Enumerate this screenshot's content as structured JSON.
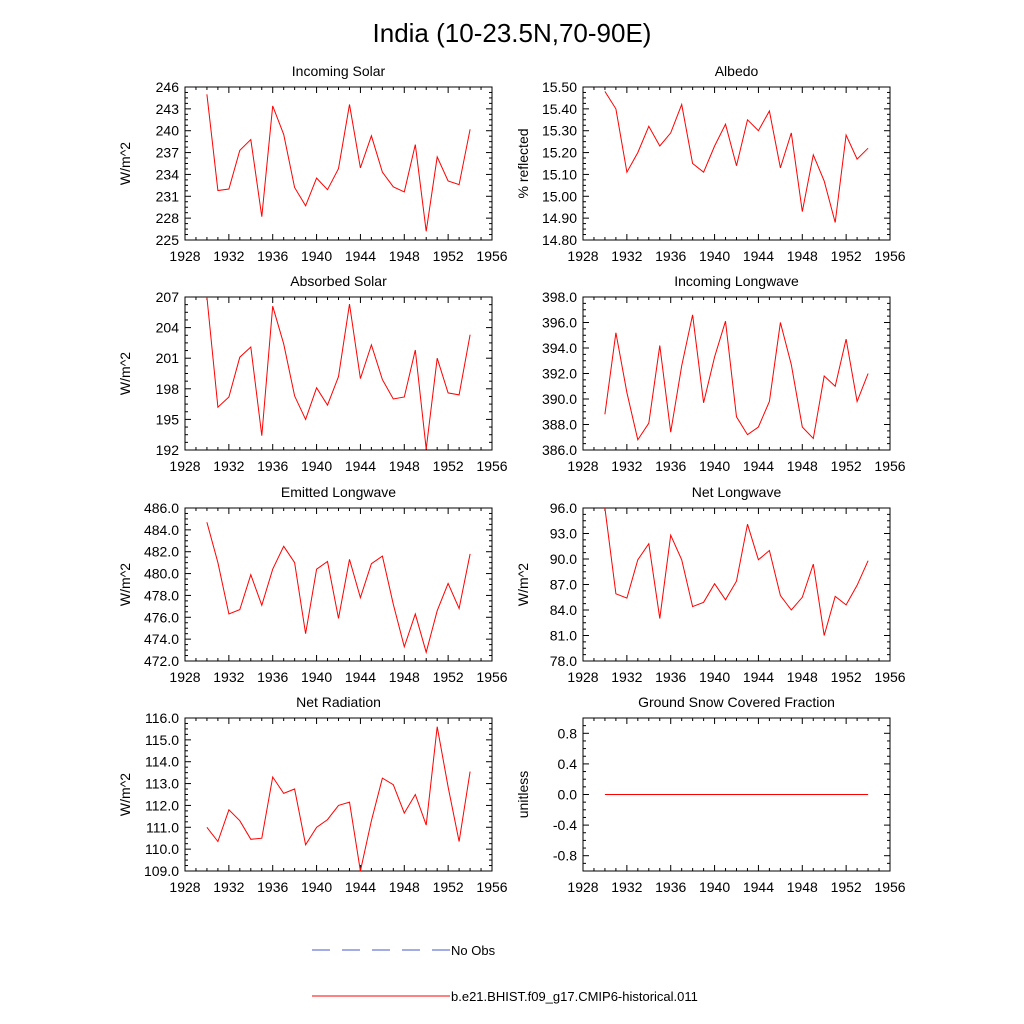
{
  "page_title": "India (10-23.5N,70-90E)",
  "legend": [
    {
      "label": "No Obs",
      "color": "#4a5acd",
      "style": "dashed"
    },
    {
      "label": "b.e21.BHIST.f09_g17.CMIP6-historical.011",
      "color": "#ff0000",
      "style": "solid"
    }
  ],
  "chart_data": [
    {
      "type": "line",
      "title": "Incoming Solar",
      "ylabel": "W/m^2",
      "ylim": [
        225,
        246
      ],
      "yticks": [
        225,
        228,
        231,
        234,
        237,
        240,
        243,
        246
      ],
      "ytick_labels": [
        "225",
        "228",
        "231",
        "234",
        "237",
        "240",
        "243",
        "246"
      ],
      "xlim": [
        1928,
        1956
      ],
      "xticks": [
        1928,
        1932,
        1936,
        1940,
        1944,
        1948,
        1952,
        1956
      ],
      "xtick_labels": [
        "1928",
        "1932",
        "1936",
        "1940",
        "1944",
        "1948",
        "1952",
        "1956"
      ],
      "x": [
        1930,
        1931,
        1932,
        1933,
        1934,
        1935,
        1936,
        1937,
        1938,
        1939,
        1940,
        1941,
        1942,
        1943,
        1944,
        1945,
        1946,
        1947,
        1948,
        1949,
        1950,
        1951,
        1952,
        1953,
        1954
      ],
      "series": [
        {
          "values": [
            245.0,
            231.8,
            232.0,
            237.3,
            238.8,
            228.2,
            243.4,
            239.5,
            232.2,
            229.7,
            233.5,
            231.9,
            234.8,
            243.6,
            234.9,
            239.3,
            234.3,
            232.3,
            231.6,
            238.1,
            226.2,
            236.4,
            233.1,
            232.6,
            240.2
          ]
        }
      ],
      "grid": false
    },
    {
      "type": "line",
      "title": "Albedo",
      "ylabel": "% reflected",
      "ylim": [
        14.8,
        15.5
      ],
      "yticks": [
        14.8,
        14.9,
        15.0,
        15.1,
        15.2,
        15.3,
        15.4,
        15.5
      ],
      "ytick_labels": [
        "14.80",
        "14.90",
        "15.00",
        "15.10",
        "15.20",
        "15.30",
        "15.40",
        "15.50"
      ],
      "xlim": [
        1928,
        1956
      ],
      "xticks": [
        1928,
        1932,
        1936,
        1940,
        1944,
        1948,
        1952,
        1956
      ],
      "xtick_labels": [
        "1928",
        "1932",
        "1936",
        "1940",
        "1944",
        "1948",
        "1952",
        "1956"
      ],
      "x": [
        1930,
        1931,
        1932,
        1933,
        1934,
        1935,
        1936,
        1937,
        1938,
        1939,
        1940,
        1941,
        1942,
        1943,
        1944,
        1945,
        1946,
        1947,
        1948,
        1949,
        1950,
        1951,
        1952,
        1953,
        1954
      ],
      "series": [
        {
          "values": [
            15.48,
            15.4,
            15.11,
            15.2,
            15.32,
            15.23,
            15.29,
            15.42,
            15.15,
            15.11,
            15.23,
            15.33,
            15.14,
            15.35,
            15.3,
            15.39,
            15.13,
            15.29,
            14.93,
            15.19,
            15.07,
            14.88,
            15.28,
            15.17,
            15.22
          ]
        }
      ],
      "grid": false
    },
    {
      "type": "line",
      "title": "Absorbed Solar",
      "ylabel": "W/m^2",
      "ylim": [
        192,
        207
      ],
      "yticks": [
        192,
        195,
        198,
        201,
        204,
        207
      ],
      "ytick_labels": [
        "192",
        "195",
        "198",
        "201",
        "204",
        "207"
      ],
      "xlim": [
        1928,
        1956
      ],
      "xticks": [
        1928,
        1932,
        1936,
        1940,
        1944,
        1948,
        1952,
        1956
      ],
      "xtick_labels": [
        "1928",
        "1932",
        "1936",
        "1940",
        "1944",
        "1948",
        "1952",
        "1956"
      ],
      "x": [
        1930,
        1931,
        1932,
        1933,
        1934,
        1935,
        1936,
        1937,
        1938,
        1939,
        1940,
        1941,
        1942,
        1943,
        1944,
        1945,
        1946,
        1947,
        1948,
        1949,
        1950,
        1951,
        1952,
        1953,
        1954
      ],
      "series": [
        {
          "values": [
            207.0,
            196.2,
            197.2,
            201.1,
            202.1,
            193.4,
            206.1,
            202.4,
            197.3,
            195.0,
            198.1,
            196.4,
            199.2,
            206.3,
            199.0,
            202.3,
            198.9,
            197.0,
            197.2,
            201.8,
            192.1,
            201.0,
            197.6,
            197.4,
            203.3
          ]
        }
      ],
      "grid": false
    },
    {
      "type": "line",
      "title": "Incoming Longwave",
      "ylabel": "",
      "ylim": [
        386,
        398
      ],
      "yticks": [
        386,
        388,
        390,
        392,
        394,
        396,
        398
      ],
      "ytick_labels": [
        "386.0",
        "388.0",
        "390.0",
        "392.0",
        "394.0",
        "396.0",
        "398.0"
      ],
      "xlim": [
        1928,
        1956
      ],
      "xticks": [
        1928,
        1932,
        1936,
        1940,
        1944,
        1948,
        1952,
        1956
      ],
      "xtick_labels": [
        "1928",
        "1932",
        "1936",
        "1940",
        "1944",
        "1948",
        "1952",
        "1956"
      ],
      "x": [
        1930,
        1931,
        1932,
        1933,
        1934,
        1935,
        1936,
        1937,
        1938,
        1939,
        1940,
        1941,
        1942,
        1943,
        1944,
        1945,
        1946,
        1947,
        1948,
        1949,
        1950,
        1951,
        1952,
        1953,
        1954
      ],
      "series": [
        {
          "values": [
            388.8,
            395.2,
            390.5,
            386.8,
            388.1,
            394.2,
            387.4,
            392.6,
            396.6,
            389.7,
            393.3,
            396.1,
            388.6,
            387.2,
            387.8,
            389.8,
            396.0,
            392.7,
            387.8,
            386.9,
            391.8,
            391.0,
            394.7,
            389.8,
            392.0
          ]
        }
      ],
      "grid": false
    },
    {
      "type": "line",
      "title": "Emitted Longwave",
      "ylabel": "W/m^2",
      "ylim": [
        472,
        486
      ],
      "yticks": [
        472,
        474,
        476,
        478,
        480,
        482,
        484,
        486
      ],
      "ytick_labels": [
        "472.0",
        "474.0",
        "476.0",
        "478.0",
        "480.0",
        "482.0",
        "484.0",
        "486.0"
      ],
      "xlim": [
        1928,
        1956
      ],
      "xticks": [
        1928,
        1932,
        1936,
        1940,
        1944,
        1948,
        1952,
        1956
      ],
      "xtick_labels": [
        "1928",
        "1932",
        "1936",
        "1940",
        "1944",
        "1948",
        "1952",
        "1956"
      ],
      "x": [
        1930,
        1931,
        1932,
        1933,
        1934,
        1935,
        1936,
        1937,
        1938,
        1939,
        1940,
        1941,
        1942,
        1943,
        1944,
        1945,
        1946,
        1947,
        1948,
        1949,
        1950,
        1951,
        1952,
        1953,
        1954
      ],
      "series": [
        {
          "values": [
            484.7,
            481.0,
            476.3,
            476.7,
            479.9,
            477.1,
            480.4,
            482.5,
            481.0,
            474.5,
            480.4,
            481.1,
            475.9,
            481.3,
            477.8,
            480.9,
            481.6,
            477.2,
            473.3,
            476.3,
            472.8,
            476.6,
            479.1,
            476.8,
            481.8
          ]
        }
      ],
      "grid": false
    },
    {
      "type": "line",
      "title": "Net Longwave",
      "ylabel": "W/m^2",
      "ylim": [
        78,
        96
      ],
      "yticks": [
        78,
        81,
        84,
        87,
        90,
        93,
        96
      ],
      "ytick_labels": [
        "78.0",
        "81.0",
        "84.0",
        "87.0",
        "90.0",
        "93.0",
        "96.0"
      ],
      "xlim": [
        1928,
        1956
      ],
      "xticks": [
        1928,
        1932,
        1936,
        1940,
        1944,
        1948,
        1952,
        1956
      ],
      "xtick_labels": [
        "1928",
        "1932",
        "1936",
        "1940",
        "1944",
        "1948",
        "1952",
        "1956"
      ],
      "x": [
        1930,
        1931,
        1932,
        1933,
        1934,
        1935,
        1936,
        1937,
        1938,
        1939,
        1940,
        1941,
        1942,
        1943,
        1944,
        1945,
        1946,
        1947,
        1948,
        1949,
        1950,
        1951,
        1952,
        1953,
        1954
      ],
      "series": [
        {
          "values": [
            96.0,
            85.9,
            85.4,
            89.9,
            91.8,
            83.0,
            92.8,
            89.9,
            84.4,
            84.9,
            87.1,
            85.2,
            87.4,
            94.1,
            89.9,
            91.0,
            85.7,
            84.0,
            85.5,
            89.4,
            81.0,
            85.6,
            84.6,
            86.9,
            89.8
          ]
        }
      ],
      "grid": false
    },
    {
      "type": "line",
      "title": "Net Radiation",
      "ylabel": "W/m^2",
      "ylim": [
        109,
        116
      ],
      "yticks": [
        109,
        110,
        111,
        112,
        113,
        114,
        115,
        116
      ],
      "ytick_labels": [
        "109.0",
        "110.0",
        "111.0",
        "112.0",
        "113.0",
        "114.0",
        "115.0",
        "116.0"
      ],
      "xlim": [
        1928,
        1956
      ],
      "xticks": [
        1928,
        1932,
        1936,
        1940,
        1944,
        1948,
        1952,
        1956
      ],
      "xtick_labels": [
        "1928",
        "1932",
        "1936",
        "1940",
        "1944",
        "1948",
        "1952",
        "1956"
      ],
      "x": [
        1930,
        1931,
        1932,
        1933,
        1934,
        1935,
        1936,
        1937,
        1938,
        1939,
        1940,
        1941,
        1942,
        1943,
        1944,
        1945,
        1946,
        1947,
        1948,
        1949,
        1950,
        1951,
        1952,
        1953,
        1954
      ],
      "series": [
        {
          "values": [
            111.0,
            110.35,
            111.8,
            111.3,
            110.45,
            110.5,
            113.3,
            112.55,
            112.75,
            110.2,
            111.0,
            111.35,
            112.0,
            112.15,
            109.0,
            111.3,
            113.25,
            112.95,
            111.65,
            112.5,
            111.1,
            115.6,
            112.85,
            110.35,
            113.55
          ]
        }
      ],
      "grid": false
    },
    {
      "type": "line",
      "title": "Ground Snow Covered Fraction",
      "ylabel": "unitless",
      "ylim": [
        -1.0,
        1.0
      ],
      "yticks": [
        -0.8,
        -0.4,
        0.0,
        0.4,
        0.8
      ],
      "ytick_labels": [
        "-0.8",
        "-0.4",
        "0.0",
        "0.4",
        "0.8"
      ],
      "xlim": [
        1928,
        1956
      ],
      "xticks": [
        1928,
        1932,
        1936,
        1940,
        1944,
        1948,
        1952,
        1956
      ],
      "xtick_labels": [
        "1928",
        "1932",
        "1936",
        "1940",
        "1944",
        "1948",
        "1952",
        "1956"
      ],
      "x": [
        1930,
        1931,
        1932,
        1933,
        1934,
        1935,
        1936,
        1937,
        1938,
        1939,
        1940,
        1941,
        1942,
        1943,
        1944,
        1945,
        1946,
        1947,
        1948,
        1949,
        1950,
        1951,
        1952,
        1953,
        1954
      ],
      "series": [
        {
          "values": [
            0,
            0,
            0,
            0,
            0,
            0,
            0,
            0,
            0,
            0,
            0,
            0,
            0,
            0,
            0,
            0,
            0,
            0,
            0,
            0,
            0,
            0,
            0,
            0,
            0
          ]
        }
      ],
      "grid": false
    }
  ]
}
